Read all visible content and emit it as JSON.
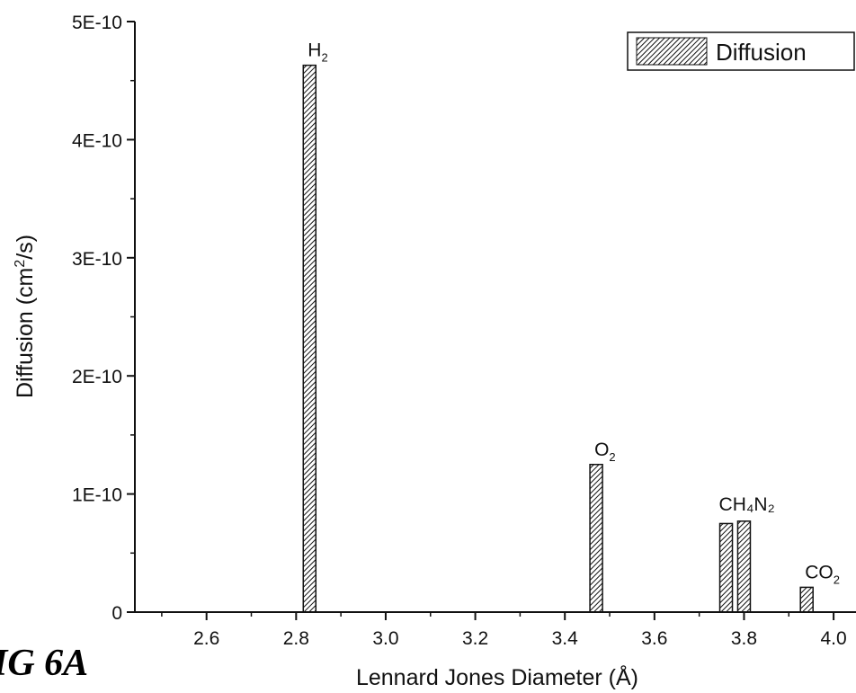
{
  "figure_label": "IG 6A",
  "chart_data": {
    "type": "bar",
    "xlabel": "Lennard Jones Diameter (Å)",
    "ylabel": "Diffusion (cm²/s)",
    "xlim": [
      2.44,
      4.05
    ],
    "ylim": [
      0,
      5e-10
    ],
    "xticks": [
      2.6,
      2.8,
      3.0,
      3.2,
      3.4,
      3.6,
      3.8,
      4.0
    ],
    "xtick_labels": [
      "2.6",
      "2.8",
      "3.0",
      "3.2",
      "3.4",
      "3.6",
      "3.8",
      "4.0"
    ],
    "yticks": [
      0,
      1e-10,
      2e-10,
      3e-10,
      4e-10,
      5e-10
    ],
    "ytick_labels": [
      "0",
      "1E-10",
      "2E-10",
      "3E-10",
      "4E-10",
      "5E-10"
    ],
    "legend": {
      "label": "Diffusion",
      "position": "top-right"
    },
    "series": [
      {
        "name": "Diffusion",
        "points": [
          {
            "x": 2.83,
            "y": 4.63e-10,
            "label": "H",
            "sub": "2"
          },
          {
            "x": 3.47,
            "y": 1.25e-10,
            "label": "O",
            "sub": "2"
          },
          {
            "x": 3.76,
            "y": 7.5e-11,
            "label": "",
            "sub": ""
          },
          {
            "x": 3.8,
            "y": 7.7e-11,
            "label": "",
            "sub": ""
          },
          {
            "x": 3.94,
            "y": 2.1e-11,
            "label": "CO",
            "sub": "2"
          }
        ]
      }
    ],
    "shared_label": "CH₄N₂",
    "grid": false
  }
}
